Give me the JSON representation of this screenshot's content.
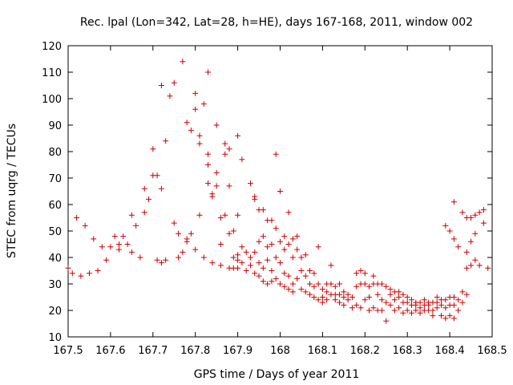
{
  "chart_data": {
    "type": "scatter",
    "title": "Rec. lpal (Lon=342, Lat=28, h=HE), days 167-168, 2011, window 002",
    "xlabel": "GPS time / Days of year 2011",
    "ylabel": "STEC from uqrg / TECUs",
    "xlim": [
      167.5,
      168.5
    ],
    "ylim": [
      10,
      120
    ],
    "xticks": [
      167.5,
      167.6,
      167.7,
      167.8,
      167.9,
      168,
      168.1,
      168.2,
      168.3,
      168.4,
      168.5
    ],
    "xtick_labels": [
      "167.5",
      "167.6",
      "167.7",
      "167.8",
      "167.9",
      "168",
      "168.1",
      "168.2",
      "168.3",
      "168.4",
      "168.5"
    ],
    "yticks": [
      10,
      20,
      30,
      40,
      50,
      60,
      70,
      80,
      90,
      100,
      110,
      120
    ],
    "ytick_labels": [
      "10",
      "20",
      "30",
      "40",
      "50",
      "60",
      "70",
      "80",
      "90",
      "100",
      "110",
      "120"
    ],
    "grid": false,
    "legend": "none",
    "marker": "plus",
    "color": "#cc0000",
    "series": [
      {
        "points": [
          [
            167.5,
            36
          ],
          [
            167.51,
            34
          ],
          [
            167.52,
            55
          ],
          [
            167.53,
            33
          ],
          [
            167.54,
            52
          ],
          [
            167.55,
            34
          ],
          [
            167.56,
            47
          ],
          [
            167.57,
            35
          ],
          [
            167.58,
            44
          ],
          [
            167.59,
            39
          ],
          [
            167.6,
            44
          ],
          [
            167.61,
            48
          ],
          [
            167.62,
            43
          ],
          [
            167.62,
            45
          ],
          [
            167.63,
            48
          ],
          [
            167.64,
            45
          ],
          [
            167.65,
            42
          ],
          [
            167.65,
            56
          ],
          [
            167.66,
            52
          ],
          [
            167.67,
            40
          ],
          [
            167.68,
            57
          ],
          [
            167.68,
            66
          ],
          [
            167.69,
            62
          ],
          [
            167.7,
            71
          ],
          [
            167.71,
            71
          ],
          [
            167.7,
            81
          ],
          [
            167.71,
            39
          ],
          [
            167.72,
            66
          ],
          [
            167.72,
            38
          ],
          [
            167.73,
            39
          ],
          [
            167.73,
            84
          ],
          [
            167.74,
            101
          ],
          [
            167.72,
            105
          ],
          [
            167.75,
            106
          ],
          [
            167.75,
            53
          ],
          [
            167.76,
            49
          ],
          [
            167.76,
            40
          ],
          [
            167.77,
            114
          ],
          [
            167.77,
            42
          ],
          [
            167.78,
            46
          ],
          [
            167.78,
            47
          ],
          [
            167.78,
            91
          ],
          [
            167.79,
            49
          ],
          [
            167.79,
            88
          ],
          [
            167.8,
            96
          ],
          [
            167.8,
            102
          ],
          [
            167.8,
            43
          ],
          [
            167.81,
            86
          ],
          [
            167.81,
            83
          ],
          [
            167.81,
            56
          ],
          [
            167.82,
            98
          ],
          [
            167.82,
            40
          ],
          [
            167.83,
            110
          ],
          [
            167.83,
            79
          ],
          [
            167.83,
            75
          ],
          [
            167.83,
            68
          ],
          [
            167.84,
            64
          ],
          [
            167.84,
            63
          ],
          [
            167.84,
            38
          ],
          [
            167.85,
            72
          ],
          [
            167.85,
            67
          ],
          [
            167.85,
            90
          ],
          [
            167.86,
            55
          ],
          [
            167.86,
            45
          ],
          [
            167.86,
            37
          ],
          [
            167.87,
            83
          ],
          [
            167.87,
            79
          ],
          [
            167.87,
            56
          ],
          [
            167.88,
            81
          ],
          [
            167.88,
            67
          ],
          [
            167.88,
            49
          ],
          [
            167.88,
            36
          ],
          [
            167.89,
            50
          ],
          [
            167.89,
            40
          ],
          [
            167.89,
            36
          ],
          [
            167.9,
            86
          ],
          [
            167.9,
            56
          ],
          [
            167.9,
            41
          ],
          [
            167.9,
            39
          ],
          [
            167.9,
            36
          ],
          [
            167.91,
            77
          ],
          [
            167.91,
            44
          ],
          [
            167.91,
            38
          ],
          [
            167.92,
            42
          ],
          [
            167.92,
            35
          ],
          [
            167.93,
            68
          ],
          [
            167.93,
            40
          ],
          [
            167.93,
            37
          ],
          [
            167.94,
            63
          ],
          [
            167.94,
            62
          ],
          [
            167.94,
            42
          ],
          [
            167.94,
            34
          ],
          [
            167.95,
            58
          ],
          [
            167.95,
            46
          ],
          [
            167.95,
            38
          ],
          [
            167.95,
            33
          ],
          [
            167.96,
            58
          ],
          [
            167.96,
            48
          ],
          [
            167.96,
            36
          ],
          [
            167.96,
            31
          ],
          [
            167.97,
            54
          ],
          [
            167.97,
            44
          ],
          [
            167.97,
            39
          ],
          [
            167.97,
            30
          ],
          [
            167.98,
            54
          ],
          [
            167.98,
            45
          ],
          [
            167.98,
            35
          ],
          [
            167.98,
            31
          ],
          [
            167.99,
            79
          ],
          [
            167.99,
            51
          ],
          [
            167.99,
            40
          ],
          [
            167.99,
            32
          ],
          [
            168.0,
            65
          ],
          [
            168.0,
            46
          ],
          [
            168.0,
            38
          ],
          [
            168.0,
            30
          ],
          [
            168.01,
            48
          ],
          [
            168.01,
            43
          ],
          [
            168.01,
            34
          ],
          [
            168.01,
            29
          ],
          [
            168.02,
            57
          ],
          [
            168.02,
            45
          ],
          [
            168.02,
            33
          ],
          [
            168.02,
            28
          ],
          [
            168.03,
            47
          ],
          [
            168.03,
            40
          ],
          [
            168.03,
            30
          ],
          [
            168.03,
            27
          ],
          [
            168.04,
            48
          ],
          [
            168.04,
            43
          ],
          [
            168.04,
            32
          ],
          [
            168.05,
            40
          ],
          [
            168.05,
            35
          ],
          [
            168.05,
            28
          ],
          [
            168.06,
            41
          ],
          [
            168.06,
            33
          ],
          [
            168.06,
            27
          ],
          [
            168.07,
            35
          ],
          [
            168.07,
            30
          ],
          [
            168.07,
            26
          ],
          [
            168.08,
            34
          ],
          [
            168.08,
            29
          ],
          [
            168.08,
            25
          ],
          [
            168.09,
            44
          ],
          [
            168.09,
            30
          ],
          [
            168.09,
            24
          ],
          [
            168.1,
            28
          ],
          [
            168.1,
            25
          ],
          [
            168.1,
            23
          ],
          [
            168.11,
            30
          ],
          [
            168.11,
            27
          ],
          [
            168.11,
            24
          ],
          [
            168.12,
            37
          ],
          [
            168.12,
            30
          ],
          [
            168.12,
            26
          ],
          [
            168.13,
            29
          ],
          [
            168.13,
            26
          ],
          [
            168.13,
            24
          ],
          [
            168.14,
            30
          ],
          [
            168.14,
            26
          ],
          [
            168.14,
            23
          ],
          [
            168.15,
            27
          ],
          [
            168.15,
            25
          ],
          [
            168.15,
            22
          ],
          [
            168.16,
            26
          ],
          [
            168.16,
            24
          ],
          [
            168.17,
            25
          ],
          [
            168.17,
            21
          ],
          [
            168.18,
            34
          ],
          [
            168.18,
            29
          ],
          [
            168.18,
            22
          ],
          [
            168.19,
            35
          ],
          [
            168.19,
            30
          ],
          [
            168.19,
            21
          ],
          [
            168.2,
            34
          ],
          [
            168.2,
            30
          ],
          [
            168.2,
            24
          ],
          [
            168.21,
            29
          ],
          [
            168.21,
            25
          ],
          [
            168.21,
            20
          ],
          [
            168.22,
            33
          ],
          [
            168.22,
            30
          ],
          [
            168.22,
            21
          ],
          [
            168.23,
            30
          ],
          [
            168.23,
            26
          ],
          [
            168.23,
            20
          ],
          [
            168.24,
            30
          ],
          [
            168.24,
            24
          ],
          [
            168.24,
            20
          ],
          [
            168.25,
            29
          ],
          [
            168.25,
            23
          ],
          [
            168.25,
            16
          ],
          [
            168.26,
            28
          ],
          [
            168.26,
            26
          ],
          [
            168.26,
            22
          ],
          [
            168.27,
            27
          ],
          [
            168.27,
            24
          ],
          [
            168.27,
            20
          ],
          [
            168.28,
            27
          ],
          [
            168.28,
            25
          ],
          [
            168.28,
            21
          ],
          [
            168.29,
            26
          ],
          [
            168.29,
            23
          ],
          [
            168.29,
            19
          ],
          [
            168.3,
            25
          ],
          [
            168.3,
            23
          ],
          [
            168.3,
            20
          ],
          [
            168.31,
            24
          ],
          [
            168.31,
            22
          ],
          [
            168.31,
            19
          ],
          [
            168.32,
            23
          ],
          [
            168.32,
            22
          ],
          [
            168.32,
            20
          ],
          [
            168.33,
            23
          ],
          [
            168.33,
            21
          ],
          [
            168.33,
            19
          ],
          [
            168.34,
            24
          ],
          [
            168.34,
            22
          ],
          [
            168.34,
            20
          ],
          [
            168.35,
            23
          ],
          [
            168.35,
            22
          ],
          [
            168.35,
            20
          ],
          [
            168.36,
            23
          ],
          [
            168.36,
            20
          ],
          [
            168.36,
            18
          ],
          [
            168.37,
            25
          ],
          [
            168.37,
            23
          ],
          [
            168.37,
            21
          ],
          [
            168.38,
            24
          ],
          [
            168.38,
            22
          ],
          [
            168.38,
            18
          ],
          [
            168.39,
            24
          ],
          [
            168.39,
            21
          ],
          [
            168.39,
            17
          ],
          [
            168.4,
            25
          ],
          [
            168.4,
            22
          ],
          [
            168.4,
            18
          ],
          [
            168.41,
            25
          ],
          [
            168.41,
            22
          ],
          [
            168.41,
            17
          ],
          [
            168.42,
            24
          ],
          [
            168.42,
            20
          ],
          [
            168.43,
            27
          ],
          [
            168.43,
            23
          ],
          [
            168.44,
            36
          ],
          [
            168.44,
            26
          ],
          [
            168.45,
            37
          ],
          [
            168.45,
            46
          ],
          [
            168.46,
            49
          ],
          [
            168.39,
            52
          ],
          [
            168.4,
            50
          ],
          [
            168.41,
            47
          ],
          [
            168.41,
            61
          ],
          [
            168.42,
            44
          ],
          [
            168.43,
            57
          ],
          [
            168.44,
            55
          ],
          [
            168.44,
            42
          ],
          [
            168.45,
            55
          ],
          [
            168.46,
            56
          ],
          [
            168.46,
            39
          ],
          [
            168.47,
            57
          ],
          [
            168.47,
            37
          ],
          [
            168.48,
            58
          ],
          [
            168.48,
            53
          ],
          [
            168.49,
            36
          ]
        ]
      }
    ]
  }
}
